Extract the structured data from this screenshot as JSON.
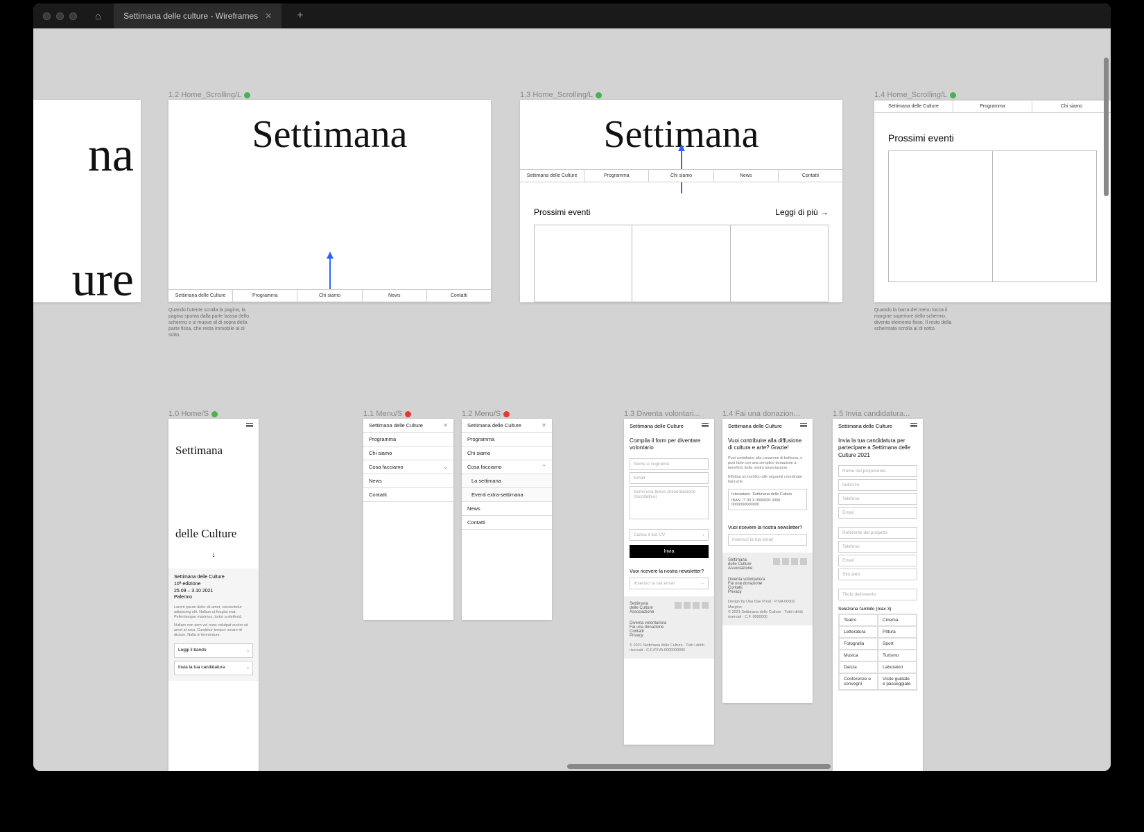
{
  "window": {
    "tab_title": "Settimana delle culture - Wireframes"
  },
  "colors": {
    "canvas_bg": "#d3d3d3",
    "frame_bg": "#ffffff",
    "arrow": "#2962ff",
    "status_green": "#4caf50",
    "status_red": "#e53935",
    "label_grey": "#888888"
  },
  "nav_items": [
    "Settimana delle Culture",
    "Programma",
    "Chi siamo",
    "News",
    "Contatti"
  ],
  "row1": {
    "partial": {
      "line1_frag": "na",
      "line2_frag": "ure"
    },
    "f12": {
      "label": "1.2 Home_Scrolling/L",
      "status": "green",
      "title": "Settimana",
      "note": "Quando l'utente scrolla la pagina, la pagina spunta dalla parte bassa dello schermo e si muove al di sopra della parte fissa, che resta immobile al di sotto."
    },
    "f13": {
      "label": "1.3 Home_Scrolling/L",
      "status": "green",
      "title": "Settimana",
      "section": "Prossimi eventi",
      "readmore": "Leggi di più →"
    },
    "f14": {
      "label": "1.4 Home_Scrolling/L",
      "status": "green",
      "section": "Prossimi eventi",
      "note": "Quando la barra del menu tocca il margine superiore dello schermo, diventa elemento fisso. Il resto della schermata scrolla al di sotto."
    }
  },
  "row2": {
    "f10": {
      "label": "1.0 Home/S",
      "status": "green",
      "t1": "Settimana",
      "t2": "delle Culture",
      "arrow": "↓",
      "info_title": "Settimana delle Culture",
      "info_ed": "10ª edizione",
      "info_dates": "25.09 – 3.10 2021",
      "info_city": "Palermo",
      "lorem1": "Lorem ipsum dolor sit amet, consectetur adipiscing elit. Nullam ut feugiat erat. Pellentesque maximus, tortor a eleifend.",
      "lorem2": "Nullam non sem vel nunc volutpat auctor sit amet id arcu. Curabitur tempor ornare id dictum. Nulla in fermentum.",
      "btn1": "Leggi il bando",
      "btn2": "Invia la tua candidatura"
    },
    "f11": {
      "label": "1.1 Menu/S",
      "status": "red",
      "items": [
        "Settimana delle Culture",
        "Programma",
        "Chi siamo",
        "Cosa facciamo",
        "News",
        "Contatti"
      ],
      "expandable_idx": 3,
      "expand_state": "down"
    },
    "f12m": {
      "label": "1.2 Menu/S",
      "status": "red",
      "items": [
        "Settimana delle Culture",
        "Programma",
        "Chi siamo",
        "Cosa facciamo",
        "La settimana",
        "Eventi extra-settimana",
        "News",
        "Contatti"
      ],
      "expandable_idx": 3,
      "expand_state": "up",
      "sub_start": 4,
      "sub_end": 5
    },
    "f13m": {
      "label": "1.3 Diventa volontari...",
      "header": "Settimana delle Culture",
      "title": "Compila il form per diventare volontario",
      "fields": [
        "Nome e cognome",
        "Email",
        "Scrivi una breve presentazione (facoltativo)"
      ],
      "upload": "Carica il tuo CV",
      "submit": "Invia",
      "newsletter_q": "Vuoi ricevere la nostra newsletter?",
      "newsletter_ph": "Inserisci la tua email",
      "footer_brand": "Settimana delle Culture Associazione",
      "footer_links": [
        "Diventa volontario/a",
        "Fai una donazione",
        "Contatti",
        "Privacy"
      ],
      "footer_credit": "© 2021 Settimana delle Culture · Tutti i diritti riservati · C.F./P.IVA 0000000000"
    },
    "f14m": {
      "label": "1.4 Fai una donazion...",
      "header": "Settimana delle Culture",
      "title": "Vuoi contribuire alla diffusione di cultura e arte? Grazie!",
      "sub1": "Puoi contribuire alla creazione di bellezza, e puoi farlo con una semplice donazione a beneficio della nostra associazione.",
      "sub2": "Effettua un bonifico alle seguenti coordinate bancarie:",
      "bank_label": "Intestatario",
      "bank_value": "Settimana delle Culture",
      "bank_iban_label": "IBAN",
      "bank_iban": "IT 00 X 0000000 0000 0000000000000",
      "newsletter_q": "Vuoi ricevere la nostra newsletter?",
      "newsletter_ph": "Inserisci la tua email",
      "footer_brand": "Settimana delle Culture Associazione",
      "footer_links": [
        "Diventa volontario/a",
        "Fai una donazione",
        "Contatti",
        "Privacy"
      ],
      "footer_design": "Design by Una Due Prodi · P.IVA 00000 Margine",
      "footer_credit": "© 2021 Settimana delle Culture · Tutti i diritti riservati · C.F. 0000000"
    },
    "f15m": {
      "label": "1.5 Invia candidatura...",
      "header": "Settimana delle Culture",
      "title": "Invia la tua candidatura per partecipare a Settimana delle Culture 2021",
      "fields1": [
        "Nome del proponente",
        "Indirizzo",
        "Telefono",
        "Email"
      ],
      "fields2": [
        "Referente del progetto",
        "Telefono",
        "Email",
        "Sito web"
      ],
      "fields3": [
        "Titolo dell'evento"
      ],
      "ambito_label": "Seleziona l'ambito (max 3)",
      "ambiti": [
        [
          "Teatro",
          "Cinema"
        ],
        [
          "Letteratura",
          "Pittura"
        ],
        [
          "Fotografia",
          "Sport"
        ],
        [
          "Musica",
          "Turismo"
        ],
        [
          "Danza",
          "Laboratori"
        ],
        [
          "Conferenze e convegni",
          "Visite guidate e passeggiate"
        ]
      ]
    }
  }
}
